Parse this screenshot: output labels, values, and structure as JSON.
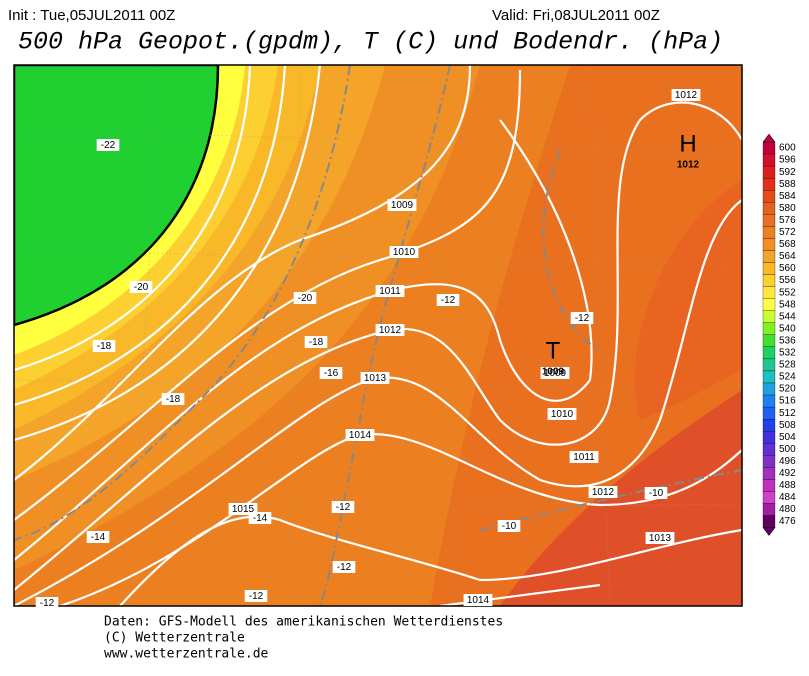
{
  "header": {
    "init": "Init : Tue,05JUL2011 00Z",
    "valid": "Valid: Fri,08JUL2011 00Z",
    "title": "500 hPa Geopot.(gpdm), T (C) und Bodendr. (hPa)"
  },
  "map": {
    "pressure_labels": [
      "1012",
      "1009",
      "1010",
      "1011",
      "1012",
      "1013",
      "1014",
      "1015",
      "1009",
      "1010",
      "1011",
      "1012",
      "1013",
      "1014"
    ],
    "temperature_labels": [
      "-22",
      "-20",
      "-18",
      "-18",
      "-20",
      "-18",
      "-16",
      "-12",
      "-12",
      "-10",
      "-10",
      "-14",
      "-14",
      "-12",
      "-12",
      "-12",
      "-12"
    ],
    "centers": [
      {
        "symbol": "H",
        "value": "1012"
      },
      {
        "symbol": "T",
        "value": "1009"
      }
    ]
  },
  "colorbar": {
    "labels": [
      "600",
      "596",
      "592",
      "588",
      "584",
      "580",
      "576",
      "572",
      "568",
      "564",
      "560",
      "556",
      "552",
      "548",
      "544",
      "540",
      "536",
      "532",
      "528",
      "524",
      "520",
      "516",
      "512",
      "508",
      "504",
      "500",
      "496",
      "492",
      "488",
      "484",
      "480",
      "476"
    ],
    "colors": [
      "#c0003c",
      "#d0102c",
      "#dc2020",
      "#e03018",
      "#e44c1c",
      "#e8601e",
      "#e87020",
      "#ec8020",
      "#f09024",
      "#f4a428",
      "#f8b828",
      "#fcd030",
      "#ffe840",
      "#ffff40",
      "#c8ff30",
      "#80f020",
      "#40e030",
      "#20d060",
      "#20c890",
      "#20c0c0",
      "#20a0e0",
      "#2080f0",
      "#2060f0",
      "#2040e8",
      "#4030e0",
      "#6030d0",
      "#8030c8",
      "#a030c0",
      "#c030c0",
      "#d040c8",
      "#a020a0",
      "#600060"
    ]
  },
  "footer": {
    "lines": [
      "Daten: GFS-Modell des amerikanischen Wetterdienstes",
      "(C) Wetterzentrale",
      "www.wetterzentrale.de"
    ]
  }
}
